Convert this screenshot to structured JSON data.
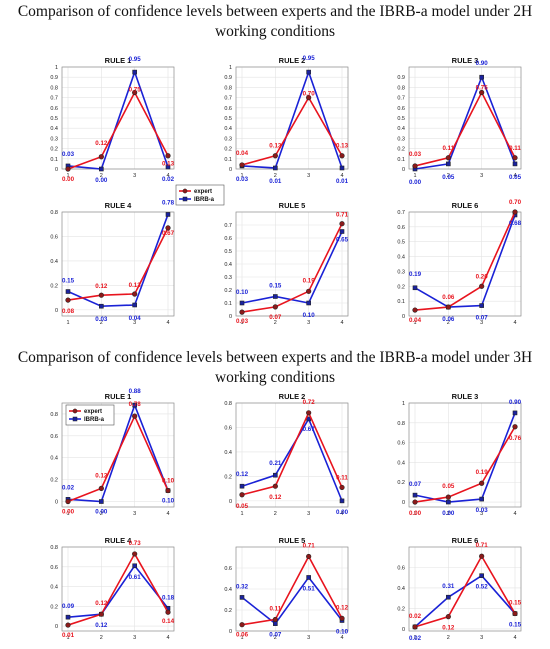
{
  "titles": [
    "Comparison of confidence levels between experts and the IBRB-a model under 2H working conditions",
    "Comparison of confidence levels between experts and the IBRB-a model under 3H working conditions"
  ],
  "colors": {
    "expert": "#e8141e",
    "ibrb": "#1a22d6"
  },
  "chart_data": [
    {
      "type": "line",
      "title": "RULE 1",
      "x": [
        1,
        2,
        3,
        4
      ],
      "ylim": [
        0,
        1
      ],
      "yticks": [
        0,
        0.1,
        0.2,
        0.3,
        0.4,
        0.5,
        0.6,
        0.7,
        0.8,
        0.9,
        1
      ],
      "legend": "none",
      "series": [
        {
          "name": "expert",
          "values": [
            0.0,
            0.12,
            0.75,
            0.13
          ]
        },
        {
          "name": "IBRB-a",
          "values": [
            0.03,
            0.0,
            0.95,
            0.02
          ]
        }
      ]
    },
    {
      "type": "line",
      "title": "RULE 2",
      "x": [
        1,
        2,
        3,
        4
      ],
      "ylim": [
        0,
        1
      ],
      "yticks": [
        0,
        0.1,
        0.2,
        0.3,
        0.4,
        0.5,
        0.6,
        0.7,
        0.8,
        0.9,
        1
      ],
      "legend": "none",
      "series": [
        {
          "name": "expert",
          "values": [
            0.04,
            0.13,
            0.7,
            0.13
          ]
        },
        {
          "name": "IBRB-a",
          "values": [
            0.03,
            0.01,
            0.95,
            0.01
          ]
        }
      ]
    },
    {
      "type": "line",
      "title": "RULE 3",
      "x": [
        1,
        2,
        3,
        4
      ],
      "ylim": [
        0,
        1
      ],
      "yticks": [
        0,
        0.1,
        0.2,
        0.3,
        0.4,
        0.5,
        0.6,
        0.7,
        0.8,
        0.9
      ],
      "legend": "none",
      "series": [
        {
          "name": "expert",
          "values": [
            0.03,
            0.11,
            0.75,
            0.11
          ]
        },
        {
          "name": "IBRB-a",
          "values": [
            0.0,
            0.05,
            0.9,
            0.05
          ]
        }
      ]
    },
    {
      "type": "line",
      "title": "RULE 4",
      "x": [
        1,
        2,
        3,
        4
      ],
      "ylim": [
        -0.05,
        0.8
      ],
      "yticks": [
        0,
        0.2,
        0.4,
        0.6,
        0.8
      ],
      "legend": "top-left",
      "series": [
        {
          "name": "expert",
          "values": [
            0.08,
            0.12,
            0.13,
            0.67
          ]
        },
        {
          "name": "IBRB-a",
          "values": [
            0.15,
            0.03,
            0.04,
            0.78
          ]
        }
      ]
    },
    {
      "type": "line",
      "title": "RULE 5",
      "x": [
        1,
        2,
        3,
        4
      ],
      "ylim": [
        0,
        0.8
      ],
      "yticks": [
        0,
        0.1,
        0.2,
        0.3,
        0.4,
        0.5,
        0.6,
        0.7
      ],
      "legend": "none",
      "series": [
        {
          "name": "expert",
          "values": [
            0.03,
            0.07,
            0.19,
            0.71
          ]
        },
        {
          "name": "IBRB-a",
          "values": [
            0.1,
            0.15,
            0.1,
            0.65
          ]
        }
      ]
    },
    {
      "type": "line",
      "title": "RULE 6",
      "x": [
        1,
        2,
        3,
        4
      ],
      "ylim": [
        0,
        0.7
      ],
      "yticks": [
        0,
        0.1,
        0.2,
        0.3,
        0.4,
        0.5,
        0.6,
        0.7
      ],
      "legend": "none",
      "series": [
        {
          "name": "expert",
          "values": [
            0.04,
            0.06,
            0.2,
            0.7
          ]
        },
        {
          "name": "IBRB-a",
          "values": [
            0.19,
            0.06,
            0.07,
            0.68
          ]
        }
      ]
    },
    {
      "type": "line",
      "title": "RULE 1",
      "x": [
        1,
        2,
        3,
        4
      ],
      "ylim": [
        -0.05,
        0.9
      ],
      "yticks": [
        0,
        0.2,
        0.4,
        0.6,
        0.8
      ],
      "legend": "top-left",
      "series": [
        {
          "name": "expert",
          "values": [
            0.0,
            0.12,
            0.78,
            0.1
          ]
        },
        {
          "name": "IBRB-a",
          "values": [
            0.02,
            0.0,
            0.88,
            0.1
          ]
        }
      ]
    },
    {
      "type": "line",
      "title": "RULE 2",
      "x": [
        1,
        2,
        3,
        4
      ],
      "ylim": [
        -0.05,
        0.8
      ],
      "yticks": [
        0,
        0.2,
        0.4,
        0.6,
        0.8
      ],
      "legend": "none",
      "series": [
        {
          "name": "expert",
          "values": [
            0.05,
            0.12,
            0.72,
            0.11
          ]
        },
        {
          "name": "IBRB-a",
          "values": [
            0.12,
            0.21,
            0.67,
            0.0
          ]
        }
      ]
    },
    {
      "type": "line",
      "title": "RULE 3",
      "x": [
        1,
        2,
        3,
        4
      ],
      "ylim": [
        -0.05,
        1.0
      ],
      "yticks": [
        0,
        0.2,
        0.4,
        0.6,
        0.8,
        1
      ],
      "legend": "none",
      "series": [
        {
          "name": "expert",
          "values": [
            0.0,
            0.05,
            0.19,
            0.76
          ]
        },
        {
          "name": "IBRB-a",
          "values": [
            0.07,
            0.0,
            0.03,
            0.9
          ]
        }
      ]
    },
    {
      "type": "line",
      "title": "RULE 4",
      "x": [
        1,
        2,
        3,
        4
      ],
      "ylim": [
        -0.05,
        0.8
      ],
      "yticks": [
        0,
        0.2,
        0.4,
        0.6,
        0.8
      ],
      "legend": "none",
      "series": [
        {
          "name": "expert",
          "values": [
            0.01,
            0.12,
            0.73,
            0.14
          ]
        },
        {
          "name": "IBRB-a",
          "values": [
            0.09,
            0.12,
            0.61,
            0.18
          ]
        }
      ]
    },
    {
      "type": "line",
      "title": "RULE 5",
      "x": [
        1,
        2,
        3,
        4
      ],
      "ylim": [
        0,
        0.8
      ],
      "yticks": [
        0,
        0.2,
        0.4,
        0.6
      ],
      "legend": "none",
      "series": [
        {
          "name": "expert",
          "values": [
            0.06,
            0.11,
            0.71,
            0.12
          ]
        },
        {
          "name": "IBRB-a",
          "values": [
            0.32,
            0.07,
            0.51,
            0.1
          ]
        }
      ]
    },
    {
      "type": "line",
      "title": "RULE 6",
      "x": [
        1,
        2,
        3,
        4
      ],
      "ylim": [
        -0.02,
        0.8
      ],
      "yticks": [
        0,
        0.2,
        0.4,
        0.6
      ],
      "legend": "none",
      "series": [
        {
          "name": "expert",
          "values": [
            0.02,
            0.12,
            0.71,
            0.15
          ]
        },
        {
          "name": "IBRB-a",
          "values": [
            0.02,
            0.31,
            0.52,
            0.15
          ]
        }
      ]
    }
  ]
}
